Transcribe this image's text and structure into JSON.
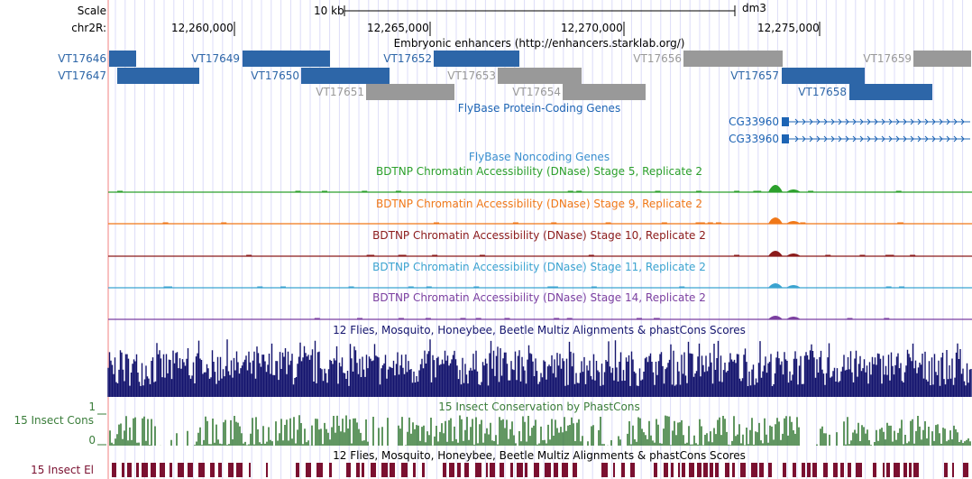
{
  "ruler": {
    "scale_label": "Scale",
    "scale_bar_label": "10 kb",
    "assembly": "dm3",
    "chrom_label": "chr2R:",
    "positions": [
      "12,260,000",
      "12,265,000",
      "12,270,000",
      "12,275,000"
    ]
  },
  "enhancers": {
    "title": "Embryonic enhancers (http://enhancers.starklab.org/)",
    "features": [
      {
        "name": "VT17646",
        "state": "active"
      },
      {
        "name": "VT17647",
        "state": "active"
      },
      {
        "name": "VT17649",
        "state": "active"
      },
      {
        "name": "VT17650",
        "state": "active"
      },
      {
        "name": "VT17651",
        "state": "inactive"
      },
      {
        "name": "VT17652",
        "state": "active"
      },
      {
        "name": "VT17653",
        "state": "inactive"
      },
      {
        "name": "VT17654",
        "state": "inactive"
      },
      {
        "name": "VT17656",
        "state": "inactive"
      },
      {
        "name": "VT17657",
        "state": "active"
      },
      {
        "name": "VT17658",
        "state": "active"
      },
      {
        "name": "VT17659",
        "state": "inactive"
      }
    ]
  },
  "genes": {
    "title": "FlyBase Protein-Coding Genes",
    "transcripts": [
      "CG33960",
      "CG33960"
    ]
  },
  "noncoding": {
    "title": "FlyBase Noncoding Genes"
  },
  "dnase_tracks": [
    {
      "title": "BDTNP Chromatin Accessibility (DNase) Stage 5, Replicate 2",
      "color": "#2ca02c"
    },
    {
      "title": "BDTNP Chromatin Accessibility (DNase) Stage 9, Replicate 2",
      "color": "#f07818"
    },
    {
      "title": "BDTNP Chromatin Accessibility (DNase) Stage 10, Replicate 2",
      "color": "#8b1a1a"
    },
    {
      "title": "BDTNP Chromatin Accessibility (DNase) Stage 11, Replicate 2",
      "color": "#3ba3d0"
    },
    {
      "title": "BDTNP Chromatin Accessibility (DNase) Stage 14, Replicate 2",
      "color": "#7b3fa0"
    }
  ],
  "multiz": {
    "title": "12 Flies, Mosquito, Honeybee, Beetle Multiz Alignments & phastCons Scores",
    "color": "#14146e"
  },
  "phastcons": {
    "title": "15 Insect Conservation by PhastCons",
    "side_label": "15 Insect Cons",
    "ymax": "1",
    "ymin": "0",
    "color": "#3a7d3a"
  },
  "elements": {
    "title": "12 Flies, Mosquito, Honeybee, Beetle Multiz Alignments & phastCons Scores",
    "side_label": "15 Insect El",
    "color": "#7a1030"
  },
  "colors": {
    "active": "#2d66a8",
    "inactive": "#999999",
    "gene": "#1d64b4",
    "grid": "#dcdcf8",
    "left_line": "#f08080"
  }
}
